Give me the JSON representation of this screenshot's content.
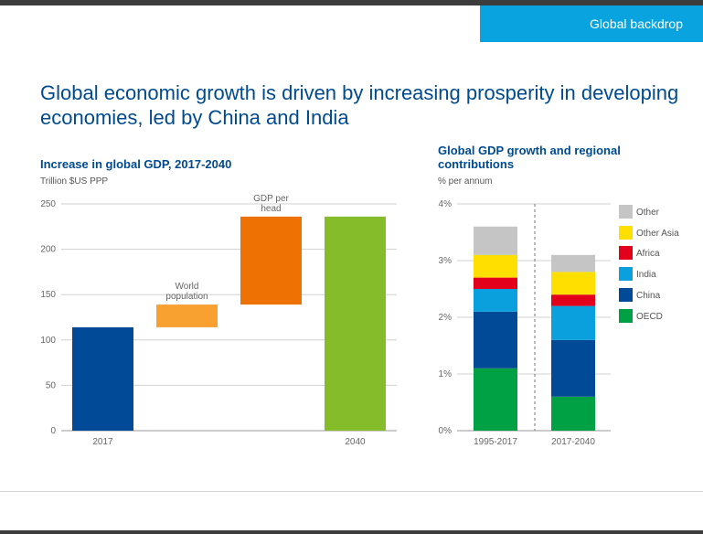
{
  "header": {
    "section": "Global backdrop",
    "headline": "Global economic growth is driven by increasing prosperity in developing economies, led by China and India"
  },
  "colors": {
    "brand_blue": "#004a8f",
    "tab_blue": "#09a3df"
  },
  "chart_data": [
    {
      "type": "bar",
      "title": "Increase in global GDP, 2017-2040",
      "unit": "Trillion $US PPP",
      "ylim": [
        0,
        250
      ],
      "yticks": [
        0,
        50,
        100,
        150,
        200,
        250
      ],
      "grid": true,
      "bars": [
        {
          "label": "2017",
          "base": 0,
          "value": 114,
          "color": "#004a97",
          "annotation": ""
        },
        {
          "label": "",
          "base": 114,
          "value": 139,
          "color": "#f8a030",
          "annotation": "World population"
        },
        {
          "label": "",
          "base": 139,
          "value": 236,
          "color": "#ee7203",
          "annotation": "GDP per head"
        },
        {
          "label": "2040",
          "base": 0,
          "value": 236,
          "color": "#84bd29",
          "annotation": ""
        }
      ]
    },
    {
      "type": "bar",
      "stacked": true,
      "title": "Global GDP growth and regional contributions",
      "unit": "% per annum",
      "ylim": [
        0,
        4
      ],
      "yticks": [
        "0%",
        "1%",
        "2%",
        "3%",
        "4%"
      ],
      "grid": true,
      "legend_position": "right",
      "categories": [
        "1995-2017",
        "2017-2040"
      ],
      "series": [
        {
          "name": "OECD",
          "color": "#00a144",
          "values": [
            1.1,
            0.6
          ]
        },
        {
          "name": "China",
          "color": "#004a97",
          "values": [
            1.0,
            1.0
          ]
        },
        {
          "name": "India",
          "color": "#0aa0de",
          "values": [
            0.4,
            0.6
          ]
        },
        {
          "name": "Africa",
          "color": "#e2001a",
          "values": [
            0.2,
            0.2
          ]
        },
        {
          "name": "Other Asia",
          "color": "#ffdf00",
          "values": [
            0.4,
            0.4
          ]
        },
        {
          "name": "Other",
          "color": "#c5c5c5",
          "values": [
            0.5,
            0.3
          ]
        }
      ]
    }
  ]
}
